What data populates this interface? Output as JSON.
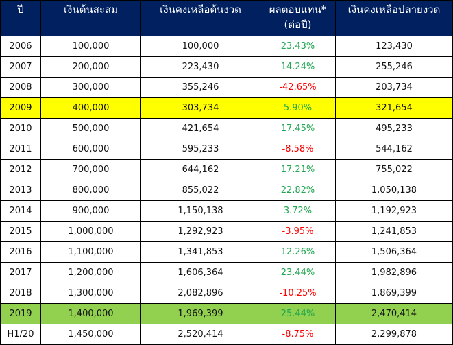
{
  "table": {
    "headers": {
      "year": "ปี",
      "principal": "เงินต้นสะสม",
      "start_balance": "เงินคงเหลือต้นงวด",
      "return_line1": "ผลตอบแทน*",
      "return_line2": "(ต่อปี)",
      "end_balance": "เงินคงเหลือปลายงวด"
    },
    "rows": [
      {
        "year": "2006",
        "principal": "100,000",
        "start": "100,000",
        "ret": "23.43%",
        "end": "123,430",
        "sign": "pos",
        "highlight": ""
      },
      {
        "year": "2007",
        "principal": "200,000",
        "start": "223,430",
        "ret": "14.24%",
        "end": "255,246",
        "sign": "pos",
        "highlight": ""
      },
      {
        "year": "2008",
        "principal": "300,000",
        "start": "355,246",
        "ret": "-42.65%",
        "end": "203,734",
        "sign": "neg",
        "highlight": ""
      },
      {
        "year": "2009",
        "principal": "400,000",
        "start": "303,734",
        "ret": "5.90%",
        "end": "321,654",
        "sign": "pos",
        "highlight": "yellow"
      },
      {
        "year": "2010",
        "principal": "500,000",
        "start": "421,654",
        "ret": "17.45%",
        "end": "495,233",
        "sign": "pos",
        "highlight": ""
      },
      {
        "year": "2011",
        "principal": "600,000",
        "start": "595,233",
        "ret": "-8.58%",
        "end": "544,162",
        "sign": "neg",
        "highlight": ""
      },
      {
        "year": "2012",
        "principal": "700,000",
        "start": "644,162",
        "ret": "17.21%",
        "end": "755,022",
        "sign": "pos",
        "highlight": ""
      },
      {
        "year": "2013",
        "principal": "800,000",
        "start": "855,022",
        "ret": "22.82%",
        "end": "1,050,138",
        "sign": "pos",
        "highlight": ""
      },
      {
        "year": "2014",
        "principal": "900,000",
        "start": "1,150,138",
        "ret": "3.72%",
        "end": "1,192,923",
        "sign": "pos",
        "highlight": ""
      },
      {
        "year": "2015",
        "principal": "1,000,000",
        "start": "1,292,923",
        "ret": "-3.95%",
        "end": "1,241,853",
        "sign": "neg",
        "highlight": ""
      },
      {
        "year": "2016",
        "principal": "1,100,000",
        "start": "1,341,853",
        "ret": "12.26%",
        "end": "1,506,364",
        "sign": "pos",
        "highlight": ""
      },
      {
        "year": "2017",
        "principal": "1,200,000",
        "start": "1,606,364",
        "ret": "23.44%",
        "end": "1,982,896",
        "sign": "pos",
        "highlight": ""
      },
      {
        "year": "2018",
        "principal": "1,300,000",
        "start": "2,082,896",
        "ret": "-10.25%",
        "end": "1,869,399",
        "sign": "neg",
        "highlight": ""
      },
      {
        "year": "2019",
        "principal": "1,400,000",
        "start": "1,969,399",
        "ret": "25.44%",
        "end": "2,470,414",
        "sign": "pos",
        "highlight": "green"
      },
      {
        "year": "H1/20",
        "principal": "1,450,000",
        "start": "2,520,414",
        "ret": "-8.75%",
        "end": "2,299,878",
        "sign": "neg",
        "highlight": ""
      }
    ]
  },
  "colors": {
    "header_bg": "#002060",
    "positive": "#1fa64f",
    "negative": "#ff0000",
    "highlight_yellow": "#ffff00",
    "highlight_green": "#92d050"
  }
}
